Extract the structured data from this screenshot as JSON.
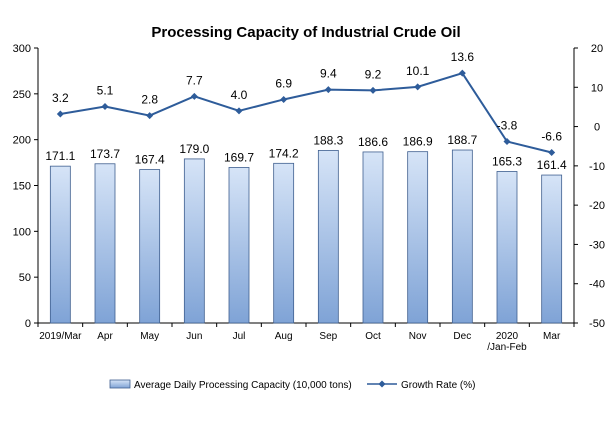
{
  "chart_data": {
    "type": "bar+line",
    "title": "Processing Capacity of Industrial Crude Oil",
    "categories": [
      [
        "2019/Mar"
      ],
      [
        "Apr"
      ],
      [
        "May"
      ],
      [
        "Jun"
      ],
      [
        "Jul"
      ],
      [
        "Aug"
      ],
      [
        "Sep"
      ],
      [
        "Oct"
      ],
      [
        "Nov"
      ],
      [
        "Dec"
      ],
      [
        "2020",
        "/Jan-Feb"
      ],
      [
        "Mar"
      ]
    ],
    "series": [
      {
        "name": "Average Daily Processing Capacity (10,000 tons)",
        "type": "bar",
        "axis": "left",
        "values": [
          171.1,
          173.7,
          167.4,
          179.0,
          169.7,
          174.2,
          188.3,
          186.6,
          186.9,
          188.7,
          165.3,
          161.4
        ],
        "labels": [
          "171.1",
          "173.7",
          "167.4",
          "179.0",
          "169.7",
          "174.2",
          "188.3",
          "186.6",
          "186.9",
          "188.7",
          "165.3",
          "161.4"
        ]
      },
      {
        "name": "Growth Rate (%)",
        "type": "line",
        "axis": "right",
        "values": [
          3.2,
          5.1,
          2.8,
          7.7,
          4.0,
          6.9,
          9.4,
          9.2,
          10.1,
          13.6,
          -3.8,
          -6.6
        ],
        "labels": [
          "3.2",
          "5.1",
          "2.8",
          "7.7",
          "4.0",
          "6.9",
          "9.4",
          "9.2",
          "10.1",
          "13.6",
          "-3.8",
          "-6.6"
        ]
      }
    ],
    "y_left": {
      "range": [
        0,
        300
      ],
      "ticks": [
        "0",
        "50",
        "100",
        "150",
        "200",
        "250",
        "300"
      ]
    },
    "y_right": {
      "range": [
        -50,
        20
      ],
      "ticks": [
        "-50",
        "-40",
        "-30",
        "-20",
        "-10",
        "0",
        "10",
        "20"
      ]
    },
    "legend": "bottom",
    "grid": false
  },
  "colors": {
    "bar_fill_top": "#d6e4f7",
    "bar_fill_bottom": "#7fa3d6",
    "bar_stroke": "#3f5f8f",
    "line": "#2e5c9a"
  }
}
